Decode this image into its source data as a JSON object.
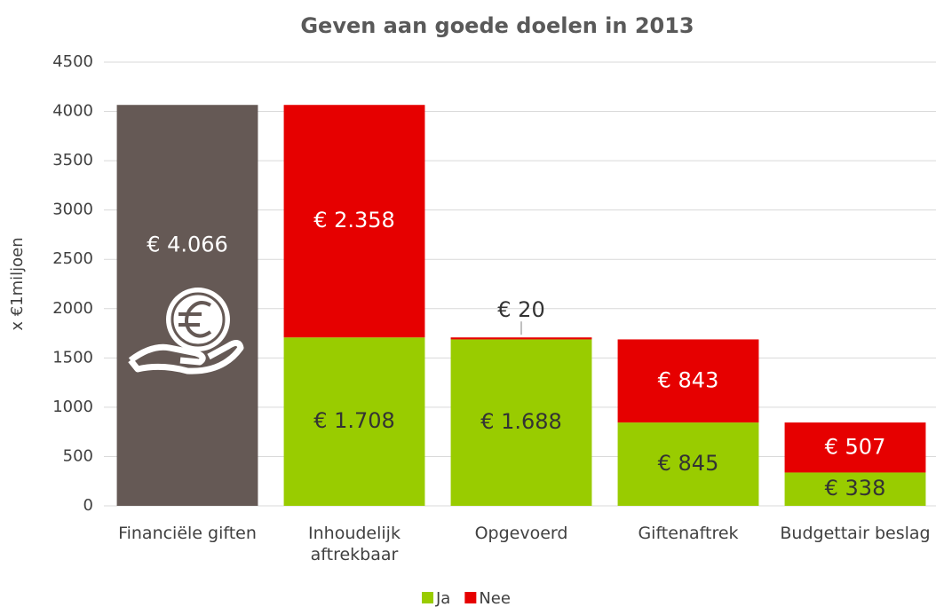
{
  "chart_data": {
    "type": "stacked_bar",
    "title": "Geven aan goede doelen in 2013",
    "y_label": "x €1miljoen",
    "categories": [
      "Financiële giften",
      "Inhoudelijk aftrekbaar",
      "Opgevoerd",
      "Giftenaftrek",
      "Budgettair beslag"
    ],
    "series": [
      {
        "color": "#655955",
        "values": [
          4066,
          null,
          null,
          null,
          null
        ],
        "value_labels": [
          "€ 4.066",
          null,
          null,
          null,
          null
        ]
      },
      {
        "name": "Ja",
        "color": "#99cc00",
        "values": [
          null,
          1708,
          1688,
          845,
          338
        ],
        "value_labels": [
          null,
          "€ 1.708",
          "€ 1.688",
          "€ 845",
          "€ 338"
        ]
      },
      {
        "name": "Nee",
        "color": "#e60000",
        "values": [
          null,
          2358,
          20,
          843,
          507
        ],
        "value_labels": [
          null,
          "€ 2.358",
          "€ 20",
          "€ 843",
          "€ 507"
        ]
      }
    ],
    "ylim": [
      0,
      4500
    ],
    "yticks": [
      0,
      500,
      1000,
      1500,
      2000,
      2500,
      3000,
      3500,
      4000,
      4500
    ],
    "grid": true,
    "legend": "bottom"
  }
}
